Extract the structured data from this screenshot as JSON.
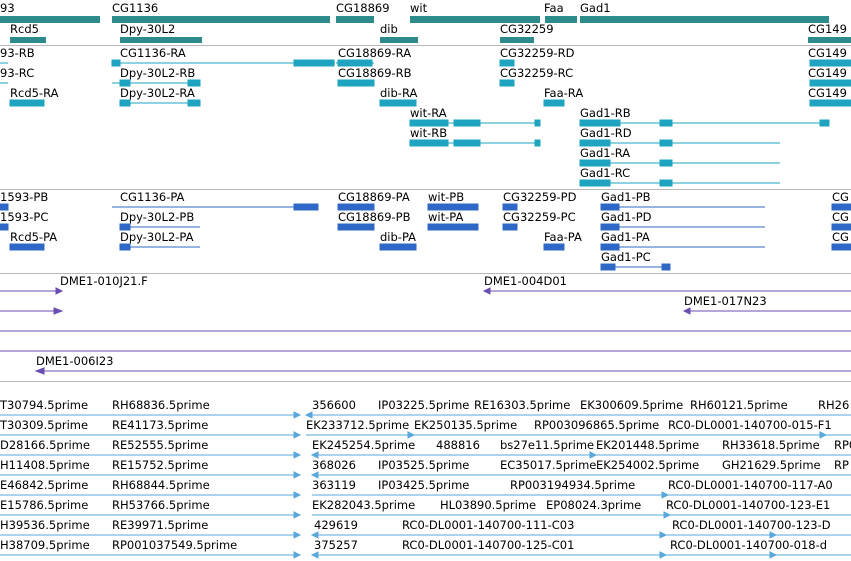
{
  "colors": {
    "gene": "#2e8b8b",
    "mrna_cyan": "#1ea3c0",
    "mrna_blue": "#2f67c6",
    "dna_purple": "#6a4db1",
    "est": "#5aa7dc"
  },
  "genes": [
    "93",
    "Rcd5",
    "CG1136",
    "Dpy-30L2",
    "CG18869",
    "dib",
    "wit",
    "CG32259",
    "Faa",
    "Gad1",
    "CG149"
  ],
  "mrna_set1": [
    "93-RB",
    "93-RC",
    "Rcd5-RA",
    "CG1136-RA",
    "Dpy-30L2-RB",
    "Dpy-30L2-RA",
    "CG18869-RA",
    "CG18869-RB",
    "dib-RA",
    "wit-RA",
    "wit-RB",
    "CG32259-RD",
    "CG32259-RC",
    "Faa-RA",
    "Gad1-RB",
    "Gad1-RD",
    "Gad1-RA",
    "Gad1-RC",
    "CG149",
    "CG149",
    "CG149"
  ],
  "mrna_set2": [
    "1593-PB",
    "1593-PC",
    "Rcd5-PA",
    "CG1136-PA",
    "Dpy-30L2-PB",
    "Dpy-30L2-PA",
    "CG18869-PA",
    "CG18869-PB",
    "dib-PA",
    "wit-PB",
    "wit-PA",
    "CG32259-PD",
    "CG32259-PC",
    "Faa-PA",
    "Gad1-PB",
    "Gad1-PD",
    "Gad1-PA",
    "Gad1-PC",
    "CG",
    "CG",
    "CG"
  ],
  "clones": [
    "DME1-010J21.F",
    "DME1-004D01",
    "DME1-017N23",
    "DME1-006I23"
  ],
  "ests": [
    "T30794.5prime",
    "RH68836.5prime",
    "356600",
    "IP03225.5prime",
    "RE16303.5prime",
    "EK300609.5prime",
    "RH60121.5prime",
    "RH26",
    "T30309.5prime",
    "RE41173.5prime",
    "EK233712.5prime",
    "EK250135.5prime",
    "RP003096865.5prime",
    "RC0-DL0001-140700-015-F1",
    "D28166.5prime",
    "RE52555.5prime",
    "EK245254.5prime",
    "488816",
    "bs27e11.5prime",
    "EK201448.5prime",
    "RH33618.5prime",
    "RP0",
    "H11408.5prime",
    "RE15752.5prime",
    "368026",
    "IP03525.5prime",
    "EC35017.5prime",
    "EK254002.5prime",
    "GH21629.5prime",
    "RP",
    "E46842.5prime",
    "RH68844.5prime",
    "363119",
    "IP03425.5prime",
    "RP003194934.5prime",
    "RC0-DL0001-140700-117-A0",
    "E15786.5prime",
    "RH53766.5prime",
    "EK282043.5prime",
    "HL03890.5prime",
    "EP08024.3prime",
    "RC0-DL0001-140700-123-E1",
    "H39536.5prime",
    "RE39971.5prime",
    "429619",
    "RC0-DL0001-140700-111-C03",
    "RC0-DL0001-140700-123-D",
    "H38709.5prime",
    "RP001037549.5prime",
    "375257",
    "RC0-DL0001-140700-125-C01",
    "RC0-DL0001-140700-018-d"
  ]
}
